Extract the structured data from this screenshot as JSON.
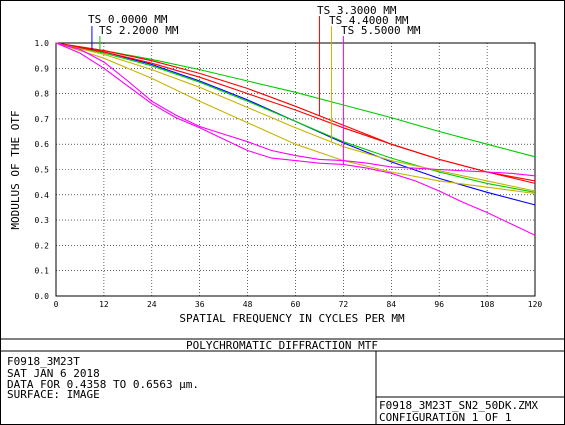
{
  "header": {
    "title": "POLYCHROMATIC DIFFRACTION MTF",
    "lens_name": "F0918_3M23T",
    "date": "SAT JAN 6 2018",
    "data_for": "DATA FOR 0.4358 TO 0.6563 µm.",
    "surface": "SURFACE: IMAGE",
    "file": "F0918_3M23T_SN2_50DK.ZMX",
    "configuration": "CONFIGURATION 1 OF 1"
  },
  "chart_data": {
    "type": "line",
    "xlabel": "SPATIAL FREQUENCY IN CYCLES PER MM",
    "ylabel": "MODULUS OF THE OTF",
    "xlim": [
      0,
      120
    ],
    "ylim": [
      0,
      1
    ],
    "x_ticks": [
      0,
      12,
      24,
      36,
      48,
      60,
      72,
      84,
      96,
      108,
      120
    ],
    "x_tick_labels": [
      "0",
      "12",
      "24",
      "36",
      "48",
      "60",
      "72",
      "84",
      "96",
      "108",
      "120"
    ],
    "y_ticks": [
      0,
      0.1,
      0.2,
      0.3,
      0.4,
      0.5,
      0.6,
      0.7,
      0.8,
      0.9,
      1.0
    ],
    "y_tick_labels": [
      "0.0",
      "0.1",
      "0.2",
      "0.3",
      "0.4",
      "0.5",
      "0.6",
      "0.7",
      "0.8",
      "0.9",
      "1.0"
    ],
    "grid": true,
    "field_labels": [
      {
        "text": "TS 0.0000 MM",
        "marker_x": 9,
        "color": "#0000ff"
      },
      {
        "text": "TS 2.2000 MM",
        "marker_x": 11,
        "color": "#00cc00"
      },
      {
        "text": "TS 3.3000 MM",
        "marker_x": 66,
        "color": "#ff0000"
      },
      {
        "text": "TS 4.4000 MM",
        "marker_x": 69,
        "color": "#c8b400"
      },
      {
        "text": "TS 5.5000 MM",
        "marker_x": 72,
        "color": "#ff00ff"
      }
    ],
    "series": [
      {
        "color": "#0000ff",
        "x": [
          0,
          12,
          24,
          36,
          48,
          60,
          72,
          84,
          96,
          108,
          120
        ],
        "y": [
          1.0,
          0.965,
          0.915,
          0.85,
          0.775,
          0.69,
          0.605,
          0.53,
          0.465,
          0.41,
          0.36
        ]
      },
      {
        "color": "#00cc00",
        "x": [
          0,
          12,
          24,
          36,
          48,
          60,
          72,
          84,
          96,
          108,
          120
        ],
        "y": [
          1.0,
          0.97,
          0.935,
          0.895,
          0.85,
          0.805,
          0.755,
          0.705,
          0.65,
          0.6,
          0.55
        ]
      },
      {
        "color": "#00cc00",
        "x": [
          0,
          12,
          24,
          36,
          48,
          60,
          72,
          84,
          96,
          108,
          120
        ],
        "y": [
          1.0,
          0.96,
          0.91,
          0.845,
          0.77,
          0.69,
          0.61,
          0.545,
          0.49,
          0.445,
          0.41
        ]
      },
      {
        "color": "#ff0000",
        "x": [
          0,
          12,
          24,
          36,
          48,
          60,
          72,
          84,
          96,
          108,
          120
        ],
        "y": [
          1.0,
          0.97,
          0.93,
          0.88,
          0.82,
          0.75,
          0.675,
          0.6,
          0.54,
          0.49,
          0.455
        ]
      },
      {
        "color": "#ff0000",
        "x": [
          0,
          12,
          24,
          36,
          48,
          60,
          72,
          84,
          96,
          108,
          120
        ],
        "y": [
          1.0,
          0.965,
          0.92,
          0.865,
          0.8,
          0.735,
          0.665,
          0.6,
          0.54,
          0.49,
          0.445
        ]
      },
      {
        "color": "#c8b400",
        "x": [
          0,
          12,
          24,
          36,
          48,
          60,
          72,
          84,
          96,
          108,
          120
        ],
        "y": [
          1.0,
          0.955,
          0.895,
          0.825,
          0.745,
          0.665,
          0.59,
          0.535,
          0.495,
          0.455,
          0.415
        ]
      },
      {
        "color": "#c8b400",
        "x": [
          0,
          12,
          24,
          36,
          48,
          60,
          72,
          84,
          96,
          108,
          120
        ],
        "y": [
          1.0,
          0.94,
          0.86,
          0.77,
          0.685,
          0.6,
          0.535,
          0.49,
          0.455,
          0.43,
          0.405
        ]
      },
      {
        "color": "#ff00ff",
        "x": [
          0,
          6,
          12,
          18,
          24,
          30,
          36,
          42,
          48,
          54,
          60,
          66,
          72,
          78,
          84,
          90,
          96,
          102,
          108,
          114,
          120
        ],
        "y": [
          1.0,
          0.96,
          0.9,
          0.83,
          0.76,
          0.705,
          0.665,
          0.62,
          0.575,
          0.545,
          0.535,
          0.525,
          0.52,
          0.505,
          0.485,
          0.455,
          0.415,
          0.37,
          0.33,
          0.285,
          0.24
        ]
      },
      {
        "color": "#ff00ff",
        "x": [
          0,
          6,
          12,
          18,
          24,
          30,
          36,
          42,
          48,
          54,
          60,
          66,
          72,
          78,
          84,
          90,
          96,
          102,
          108,
          114,
          120
        ],
        "y": [
          1.0,
          0.975,
          0.925,
          0.85,
          0.77,
          0.715,
          0.67,
          0.64,
          0.61,
          0.575,
          0.555,
          0.54,
          0.535,
          0.525,
          0.51,
          0.505,
          0.5,
          0.495,
          0.49,
          0.485,
          0.475
        ]
      }
    ]
  }
}
